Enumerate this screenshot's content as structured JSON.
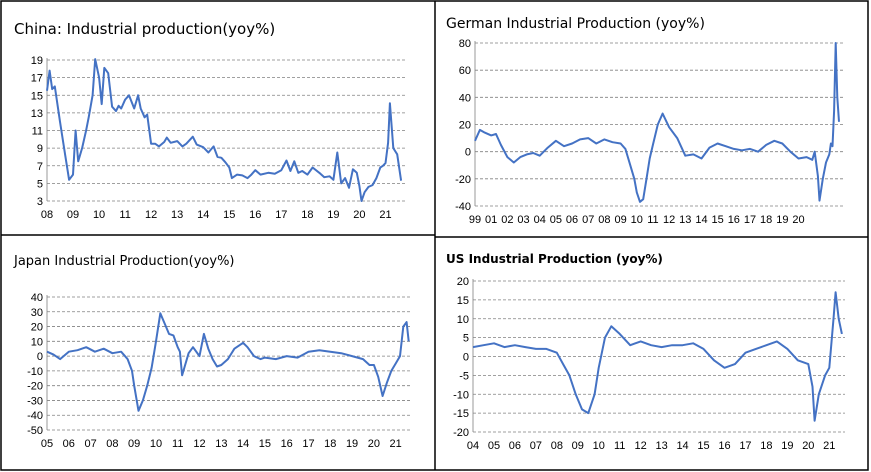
{
  "chart_data": [
    {
      "type": "line",
      "title": "China: Industrial production(yoy%)",
      "ylim": [
        3,
        19
      ],
      "yticks": [
        3,
        5,
        7,
        9,
        11,
        13,
        15,
        17,
        19
      ],
      "xlim": [
        2008,
        2021.75
      ],
      "xticks": [
        "08",
        "09",
        "10",
        "11",
        "12",
        "13",
        "14",
        "15",
        "16",
        "17",
        "18",
        "19",
        "20",
        "21"
      ],
      "grid": "horizontal-dashed",
      "color": "#4472C4",
      "series": [
        {
          "x": [
            2008.0,
            2008.1,
            2008.2,
            2008.3,
            2008.5,
            2008.7,
            2008.85,
            2009.0,
            2009.1,
            2009.2,
            2009.35,
            2009.5,
            2009.6,
            2009.75,
            2009.85,
            2010.0,
            2010.1,
            2010.2,
            2010.35,
            2010.5,
            2010.65,
            2010.75,
            2010.85,
            2011.0,
            2011.15,
            2011.35,
            2011.5,
            2011.6,
            2011.75,
            2011.85,
            2012.0,
            2012.15,
            2012.3,
            2012.5,
            2012.6,
            2012.75,
            2013.0,
            2013.2,
            2013.35,
            2013.6,
            2013.75,
            2014.0,
            2014.2,
            2014.4,
            2014.55,
            2014.7,
            2014.85,
            2015.0,
            2015.1,
            2015.3,
            2015.5,
            2015.7,
            2015.85,
            2016.0,
            2016.2,
            2016.5,
            2016.75,
            2017.0,
            2017.2,
            2017.35,
            2017.5,
            2017.65,
            2017.8,
            2018.0,
            2018.2,
            2018.5,
            2018.65,
            2018.85,
            2019.0,
            2019.15,
            2019.3,
            2019.45,
            2019.6,
            2019.75,
            2019.9,
            2020.0,
            2020.08,
            2020.2,
            2020.35,
            2020.5,
            2020.65,
            2020.8,
            2020.9,
            2021.0,
            2021.1,
            2021.17,
            2021.3,
            2021.45,
            2021.6
          ],
          "y": [
            15.5,
            17.8,
            15.7,
            16.0,
            12.0,
            8.2,
            5.4,
            6.0,
            11.0,
            7.5,
            9.0,
            11.0,
            12.5,
            15.0,
            19.1,
            17.0,
            14.0,
            18.1,
            17.5,
            13.7,
            13.2,
            13.8,
            13.5,
            14.5,
            15.0,
            13.5,
            15.0,
            13.5,
            12.5,
            12.8,
            9.5,
            9.5,
            9.2,
            9.7,
            10.2,
            9.6,
            9.8,
            9.2,
            9.5,
            10.3,
            9.4,
            9.1,
            8.5,
            9.2,
            8.0,
            7.9,
            7.4,
            6.8,
            5.6,
            6.0,
            5.9,
            5.6,
            6.0,
            6.5,
            6.0,
            6.2,
            6.1,
            6.5,
            7.6,
            6.4,
            7.5,
            6.2,
            6.4,
            6.0,
            6.8,
            6.1,
            5.7,
            5.8,
            5.4,
            8.5,
            5.0,
            5.6,
            4.5,
            6.6,
            6.2,
            4.7,
            3.0,
            4.0,
            4.6,
            4.8,
            5.6,
            6.8,
            7.0,
            7.3,
            9.6,
            14.1,
            9.0,
            8.3,
            5.3
          ]
        }
      ]
    },
    {
      "type": "line",
      "title": "German Industrial Production (yoy%)",
      "ylim": [
        -40,
        80
      ],
      "yticks": [
        -40,
        -20,
        0,
        20,
        40,
        60,
        80
      ],
      "xlim": [
        1999,
        2021.75
      ],
      "xticks": [
        "99",
        "01",
        "02",
        "03",
        "04",
        "05",
        "06",
        "07",
        "08",
        "09",
        "10",
        "11",
        "12",
        "13",
        "14",
        "15",
        "16",
        "17",
        "18",
        "19",
        "20"
      ],
      "grid": "horizontal-dashed",
      "color": "#4472C4",
      "series": [
        {
          "x": [
            1999.0,
            1999.3,
            1999.6,
            2000.0,
            2000.3,
            2000.6,
            2001.0,
            2001.4,
            2001.8,
            2002.2,
            2002.6,
            2003.0,
            2003.5,
            2004.0,
            2004.5,
            2005.0,
            2005.5,
            2006.0,
            2006.5,
            2007.0,
            2007.5,
            2008.0,
            2008.3,
            2008.6,
            2008.85,
            2009.0,
            2009.2,
            2009.4,
            2009.6,
            2009.8,
            2010.0,
            2010.3,
            2010.6,
            2011.0,
            2011.5,
            2012.0,
            2012.5,
            2013.0,
            2013.5,
            2014.0,
            2014.5,
            2015.0,
            2015.5,
            2016.0,
            2016.5,
            2017.0,
            2017.5,
            2018.0,
            2018.5,
            2019.0,
            2019.5,
            2019.85,
            2020.0,
            2020.2,
            2020.3,
            2020.5,
            2020.7,
            2020.9,
            2021.0,
            2021.1,
            2021.2,
            2021.3,
            2021.4,
            2021.5
          ],
          "y": [
            8,
            16,
            14,
            12,
            13,
            5,
            -4,
            -8,
            -4,
            -2,
            -1,
            -3,
            3,
            8,
            4,
            6,
            9,
            10,
            6,
            9,
            7,
            6,
            2,
            -10,
            -20,
            -30,
            -37,
            -35,
            -20,
            -5,
            5,
            20,
            28,
            18,
            10,
            -3,
            -2,
            -5,
            3,
            6,
            4,
            2,
            1,
            2,
            0,
            5,
            8,
            6,
            0,
            -5,
            -4,
            -6,
            0,
            -18,
            -36,
            -20,
            -8,
            -2,
            6,
            4,
            30,
            80,
            40,
            22
          ]
        }
      ]
    },
    {
      "type": "line",
      "title": "Japan Industrial Production(yoy%)",
      "ylim": [
        -50,
        40
      ],
      "yticks": [
        -50,
        -40,
        -30,
        -20,
        -10,
        0,
        10,
        20,
        30,
        40
      ],
      "xlim": [
        2005,
        2021.75
      ],
      "xticks": [
        "05",
        "06",
        "07",
        "08",
        "09",
        "10",
        "11",
        "12",
        "13",
        "14",
        "15",
        "16",
        "17",
        "18",
        "19",
        "20",
        "21"
      ],
      "grid": "horizontal-dashed",
      "color": "#4472C4",
      "series": [
        {
          "x": [
            2005.0,
            2005.3,
            2005.6,
            2006.0,
            2006.4,
            2006.8,
            2007.2,
            2007.6,
            2008.0,
            2008.4,
            2008.7,
            2008.9,
            2009.0,
            2009.2,
            2009.4,
            2009.6,
            2009.8,
            2010.0,
            2010.2,
            2010.4,
            2010.6,
            2010.8,
            2011.0,
            2011.1,
            2011.2,
            2011.3,
            2011.5,
            2011.7,
            2012.0,
            2012.2,
            2012.4,
            2012.6,
            2012.8,
            2013.0,
            2013.3,
            2013.6,
            2014.0,
            2014.2,
            2014.5,
            2014.8,
            2015.0,
            2015.5,
            2016.0,
            2016.5,
            2017.0,
            2017.5,
            2018.0,
            2018.5,
            2019.0,
            2019.5,
            2019.8,
            2020.0,
            2020.2,
            2020.4,
            2020.6,
            2020.8,
            2021.0,
            2021.2,
            2021.35,
            2021.5,
            2021.6
          ],
          "y": [
            3,
            1,
            -2,
            3,
            4,
            6,
            3,
            5,
            2,
            3,
            -2,
            -10,
            -20,
            -37,
            -30,
            -20,
            -8,
            10,
            29,
            22,
            15,
            14,
            6,
            3,
            -13,
            -8,
            2,
            6,
            0,
            15,
            5,
            -2,
            -7,
            -6,
            -2,
            5,
            9,
            6,
            0,
            -2,
            -1,
            -2,
            0,
            -1,
            3,
            4,
            3,
            2,
            0,
            -2,
            -6,
            -6,
            -14,
            -27,
            -18,
            -10,
            -5,
            0,
            20,
            23,
            10
          ]
        }
      ]
    },
    {
      "type": "line",
      "title": "US Industrial Production (yoy%)",
      "ylim": [
        -20,
        20
      ],
      "yticks": [
        -20,
        -15,
        -10,
        -5,
        0,
        5,
        10,
        15,
        20
      ],
      "xlim": [
        2004,
        2021.75
      ],
      "xticks": [
        "04",
        "05",
        "06",
        "07",
        "08",
        "09",
        "10",
        "11",
        "12",
        "13",
        "14",
        "15",
        "16",
        "17",
        "18",
        "19",
        "20",
        "21"
      ],
      "grid": "horizontal-dashed",
      "color": "#4472C4",
      "series": [
        {
          "x": [
            2004.0,
            2004.5,
            2005.0,
            2005.5,
            2006.0,
            2006.5,
            2007.0,
            2007.5,
            2008.0,
            2008.3,
            2008.6,
            2008.9,
            2009.2,
            2009.5,
            2009.8,
            2010.0,
            2010.3,
            2010.6,
            2011.0,
            2011.5,
            2012.0,
            2012.5,
            2013.0,
            2013.5,
            2014.0,
            2014.5,
            2015.0,
            2015.5,
            2016.0,
            2016.5,
            2017.0,
            2017.5,
            2018.0,
            2018.5,
            2019.0,
            2019.5,
            2020.0,
            2020.2,
            2020.3,
            2020.5,
            2020.8,
            2021.0,
            2021.2,
            2021.3,
            2021.45,
            2021.6
          ],
          "y": [
            2.5,
            3,
            3.5,
            2.5,
            3,
            2.5,
            2,
            2,
            1,
            -2,
            -5,
            -10,
            -14,
            -15,
            -10,
            -3,
            5,
            8,
            6,
            3,
            4,
            3,
            2.5,
            3,
            3,
            3.5,
            2,
            -1,
            -3,
            -2,
            1,
            2,
            3,
            4,
            2,
            -1,
            -2,
            -8,
            -17,
            -10,
            -5,
            -3,
            10,
            17,
            10,
            6
          ]
        }
      ]
    }
  ]
}
